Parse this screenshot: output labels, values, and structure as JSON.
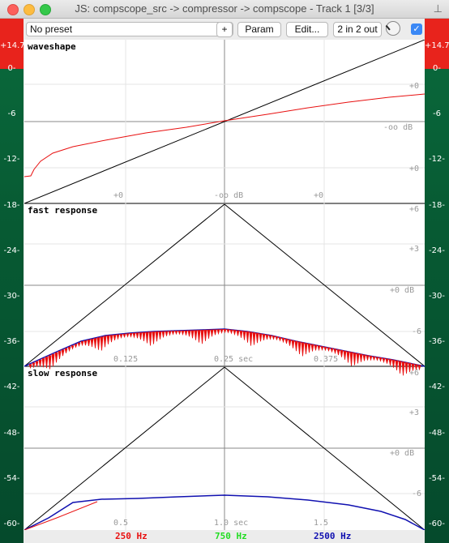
{
  "window": {
    "title": "JS: compscope_src -> compressor -> compscope - Track 1 [3/3]"
  },
  "toolbar": {
    "preset": "No preset",
    "plus_label": "+",
    "param_label": "Param",
    "edit_label": "Edit...",
    "io_label": "2 in 2 out",
    "enabled": true
  },
  "meters": {
    "peak_label": "+14.7",
    "scale": [
      "0-",
      "-6",
      "-12-",
      "-18-",
      "-24-",
      "-30-",
      "-36-",
      "-42-",
      "-48-",
      "-54-",
      "-60-"
    ]
  },
  "panels": {
    "waveshape": {
      "title": "waveshape",
      "x_labels": [
        "+0",
        "-oo dB",
        "+0"
      ],
      "right_labels": [
        "+0",
        "-oo dB",
        "+0"
      ]
    },
    "fast": {
      "title": "fast response",
      "x_labels": [
        "0.125",
        "0.25 sec",
        "0.375"
      ],
      "right_labels": [
        "+6",
        "+3",
        "+0 dB",
        "-6"
      ]
    },
    "slow": {
      "title": "slow response",
      "x_labels": [
        "0.5",
        "1.0 sec",
        "1.5"
      ],
      "right_labels": [
        "+6",
        "+3",
        "+0 dB",
        "-6"
      ]
    }
  },
  "legend": [
    {
      "label": "250 Hz",
      "color": "#e81010"
    },
    {
      "label": "750 Hz",
      "color": "#22dd22"
    },
    {
      "label": "2500 Hz",
      "color": "#1010b0"
    }
  ]
}
